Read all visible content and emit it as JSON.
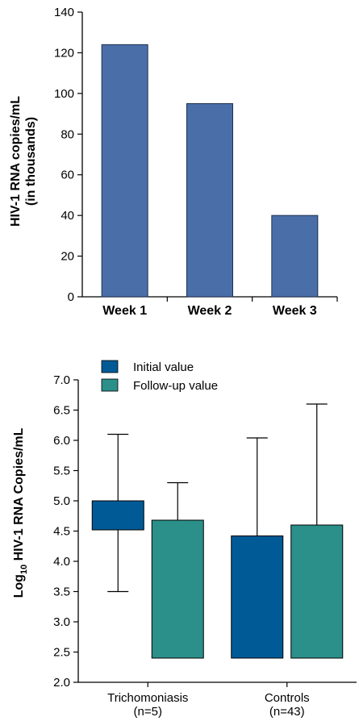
{
  "chart_data": [
    {
      "type": "bar",
      "ylabel_line1": "HIV-1 RNA copies/mL",
      "ylabel_line2": "(in thousands)",
      "categories": [
        "Week 1",
        "Week 2",
        "Week 3"
      ],
      "values": [
        124,
        95,
        40
      ],
      "ylim": [
        0,
        140
      ],
      "yticks": [
        0,
        20,
        40,
        60,
        80,
        100,
        120,
        140
      ],
      "bar_color": "#4a6fa8",
      "grid": false
    },
    {
      "type": "box",
      "ylabel_prefix": "Log",
      "ylabel_sub": "10",
      "ylabel_rest": " HIV-1 RNA Copies/mL",
      "ylim": [
        2.0,
        7.0
      ],
      "yticks": [
        "2.0",
        "2.5",
        "3.0",
        "3.5",
        "4.0",
        "4.5",
        "5.0",
        "5.5",
        "6.0",
        "6.5",
        "7.0"
      ],
      "legend": [
        {
          "name": "Initial value",
          "color": "#005a96"
        },
        {
          "name": "Follow-up value",
          "color": "#2a9089"
        }
      ],
      "legend_placement": "top-left",
      "groups": [
        {
          "label": "Trichomoniasis",
          "sublabel": "(n=5)",
          "boxes": [
            {
              "series": "Initial value",
              "low": 4.52,
              "high": 5.0,
              "whisker_min": 3.5,
              "whisker_max": 6.1
            },
            {
              "series": "Follow-up value",
              "low": 2.4,
              "high": 4.68,
              "whisker_min": null,
              "whisker_max": 5.3
            }
          ]
        },
        {
          "label": "Controls",
          "sublabel": "(n=43)",
          "boxes": [
            {
              "series": "Initial value",
              "low": 2.4,
              "high": 4.42,
              "whisker_min": null,
              "whisker_max": 6.04
            },
            {
              "series": "Follow-up value",
              "low": 2.4,
              "high": 4.6,
              "whisker_min": null,
              "whisker_max": 6.6
            }
          ]
        }
      ]
    }
  ]
}
